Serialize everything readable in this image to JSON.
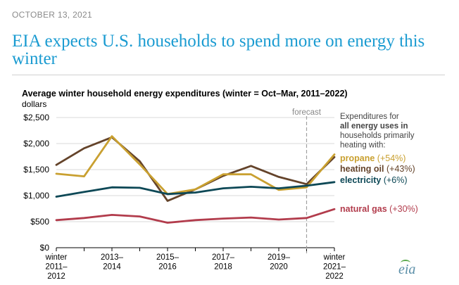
{
  "header": {
    "date": "OCTOBER 13, 2021",
    "title": "EIA expects U.S. households to spend more on energy this winter"
  },
  "logo": {
    "text": "eia"
  },
  "colors": {
    "propane": "#c9a030",
    "heating_oil": "#64432a",
    "electricity": "#0d4856",
    "natural_gas": "#b23c4c",
    "grid": "#d9d9d9",
    "forecast_line": "#a0a0a0",
    "headline": "#1a9bd1"
  },
  "chart_data": {
    "type": "line",
    "title": "Average winter household energy expenditures (winter = Oct–Mar, 2011–2022)",
    "ylabel": "dollars",
    "xlabel": "",
    "ylim": [
      0,
      2500
    ],
    "yticks": [
      0,
      500,
      1000,
      1500,
      2000,
      2500
    ],
    "ytick_labels": [
      "$0",
      "$500",
      "$1,000",
      "$1,500",
      "$2,000",
      "$2,500"
    ],
    "x": [
      0,
      1,
      2,
      3,
      4,
      5,
      6,
      7,
      8,
      9,
      10
    ],
    "xtick_labels": [
      {
        "x": 0,
        "lines": [
          "winter",
          "2011–",
          "2012"
        ]
      },
      {
        "x": 2,
        "lines": [
          "2013–",
          "2014"
        ]
      },
      {
        "x": 4,
        "lines": [
          "2015–",
          "2016"
        ]
      },
      {
        "x": 6,
        "lines": [
          "2017–",
          "2018"
        ]
      },
      {
        "x": 8,
        "lines": [
          "2019–",
          "2020"
        ]
      },
      {
        "x": 10,
        "lines": [
          "winter",
          "2021–",
          "2022"
        ]
      }
    ],
    "forecast": {
      "x": 9,
      "label": "forecast"
    },
    "annotation": {
      "lines": [
        "Expenditures for",
        "all energy uses in",
        "households primarily",
        "heating with:"
      ],
      "bold_line": 1
    },
    "series": [
      {
        "key": "heating_oil",
        "name": "heating oil",
        "change": "(+43%)",
        "values": [
          1590,
          1910,
          2120,
          1660,
          900,
          1120,
          1380,
          1570,
          1360,
          1220,
          1740
        ]
      },
      {
        "key": "propane",
        "name": "propane",
        "change": "(+54%)",
        "values": [
          1420,
          1370,
          2140,
          1600,
          1030,
          1120,
          1410,
          1410,
          1110,
          1160,
          1790
        ]
      },
      {
        "key": "electricity",
        "name": "electricity",
        "change": "(+6%)",
        "values": [
          980,
          1070,
          1160,
          1150,
          1030,
          1060,
          1140,
          1170,
          1140,
          1190,
          1260
        ]
      },
      {
        "key": "natural_gas",
        "name": "natural gas",
        "change": "(+30%)",
        "values": [
          530,
          570,
          630,
          600,
          480,
          530,
          560,
          580,
          540,
          570,
          740
        ]
      }
    ]
  }
}
